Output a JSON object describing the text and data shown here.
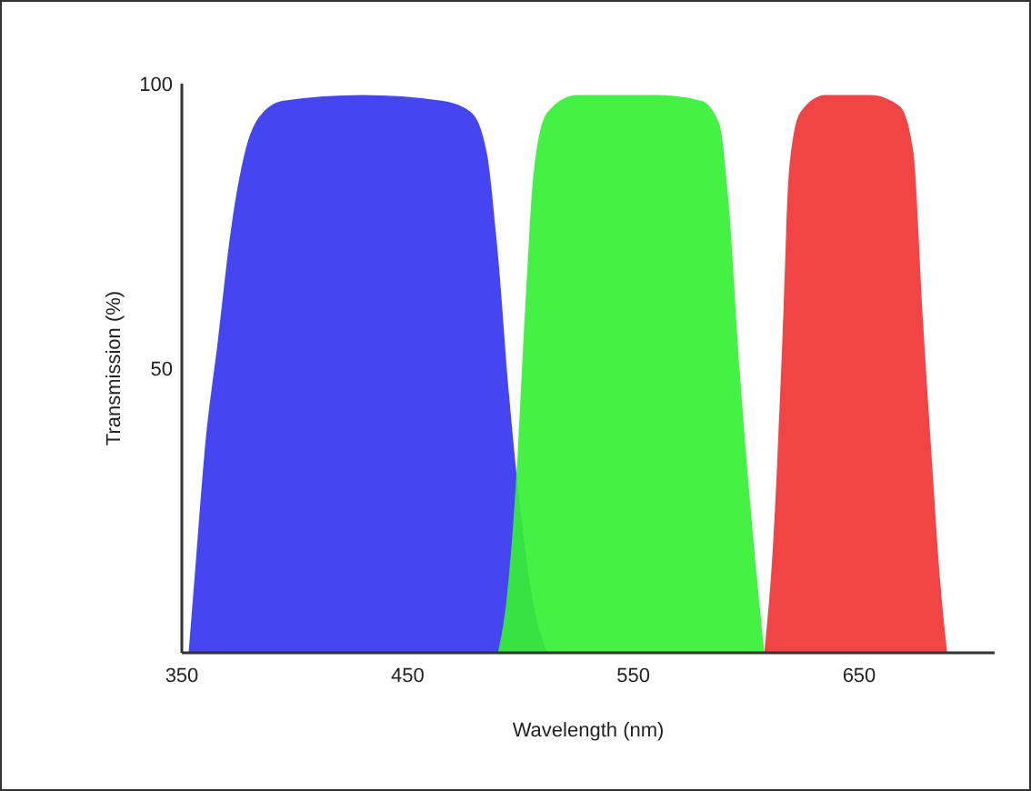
{
  "chart_data": {
    "type": "area",
    "xlabel": "Wavelength (nm)",
    "ylabel": "Transmission (%)",
    "xlim": [
      350,
      710
    ],
    "ylim": [
      0,
      100
    ],
    "xticks": [
      350,
      450,
      550,
      650
    ],
    "yticks": [
      50,
      100
    ],
    "grid": false,
    "series": [
      {
        "color": "#3535f0",
        "x": [
          353,
          356,
          360,
          366,
          372,
          378,
          384,
          395,
          430,
          465,
          478,
          485,
          490,
          495,
          500,
          506,
          512
        ],
        "values": [
          0,
          15,
          35,
          55,
          75,
          88,
          94,
          97,
          98,
          97,
          95,
          88,
          70,
          45,
          25,
          8,
          0
        ]
      },
      {
        "color": "#35f035",
        "x": [
          490,
          494,
          498,
          502,
          506,
          512,
          525,
          560,
          580,
          588,
          592,
          597,
          602,
          608
        ],
        "values": [
          0,
          10,
          30,
          60,
          85,
          95,
          98,
          98,
          97,
          93,
          80,
          50,
          25,
          0
        ]
      },
      {
        "color": "#f03535",
        "x": [
          608,
          612,
          616,
          619,
          624,
          635,
          655,
          668,
          674,
          678,
          682,
          686,
          689
        ],
        "values": [
          0,
          20,
          55,
          85,
          95,
          98,
          98,
          96,
          88,
          60,
          35,
          12,
          0
        ]
      }
    ]
  }
}
